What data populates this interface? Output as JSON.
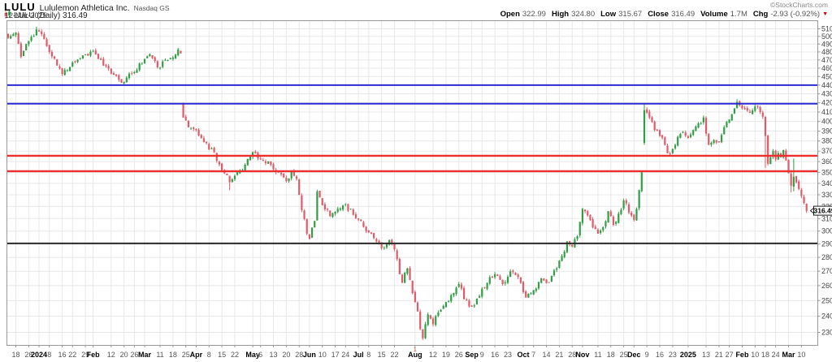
{
  "header": {
    "symbol": "LULU",
    "company": "Lululemon Athletica Inc.",
    "exchange": "Nasdaq GS",
    "date": "12-Mar-2025",
    "credit": "©StockCharts.com",
    "quote": {
      "items": [
        {
          "label": "Open",
          "value": "322.99"
        },
        {
          "label": "High",
          "value": "324.80"
        },
        {
          "label": "Low",
          "value": "315.67"
        },
        {
          "label": "Close",
          "value": "316.49"
        },
        {
          "label": "Volume",
          "value": "1.7M"
        },
        {
          "label": "Chg",
          "value": "-2.93 (-0.92%)"
        }
      ],
      "arrow": "▼",
      "direction": "down"
    }
  },
  "legend": {
    "label": "LULU (Daily) 316.49"
  },
  "chart_data": {
    "type": "candlestick",
    "symbol": "LULU",
    "period": "Daily",
    "scale": "log",
    "grid": true,
    "last_price": 316.49,
    "price_marker": {
      "value": "316.49"
    },
    "y_axis": {
      "side": "right",
      "min": 222,
      "max": 518,
      "ticks": [
        230,
        240,
        250,
        260,
        270,
        280,
        290,
        300,
        310,
        320,
        330,
        340,
        350,
        360,
        370,
        380,
        390,
        400,
        410,
        420,
        430,
        440,
        450,
        460,
        470,
        480,
        490,
        500,
        510
      ]
    },
    "x_axis": {
      "labels": [
        {
          "text": "18",
          "i": 3
        },
        {
          "text": "26",
          "i": 8
        },
        {
          "text": "2024",
          "i": 12,
          "bold": true
        },
        {
          "text": "8",
          "i": 16
        },
        {
          "text": "16",
          "i": 21
        },
        {
          "text": "22",
          "i": 25
        },
        {
          "text": "29",
          "i": 30
        },
        {
          "text": "Feb",
          "i": 33,
          "bold": true
        },
        {
          "text": "12",
          "i": 40
        },
        {
          "text": "20",
          "i": 45
        },
        {
          "text": "26",
          "i": 49
        },
        {
          "text": "Mar",
          "i": 53,
          "bold": true
        },
        {
          "text": "11",
          "i": 59
        },
        {
          "text": "18",
          "i": 64
        },
        {
          "text": "25",
          "i": 69
        },
        {
          "text": "Apr",
          "i": 73,
          "bold": true
        },
        {
          "text": "8",
          "i": 78
        },
        {
          "text": "15",
          "i": 83
        },
        {
          "text": "22",
          "i": 88
        },
        {
          "text": "May",
          "i": 95,
          "bold": true
        },
        {
          "text": "6",
          "i": 98
        },
        {
          "text": "13",
          "i": 103
        },
        {
          "text": "20",
          "i": 108
        },
        {
          "text": "28",
          "i": 113
        },
        {
          "text": "Jun",
          "i": 117,
          "bold": true
        },
        {
          "text": "10",
          "i": 122
        },
        {
          "text": "17",
          "i": 127
        },
        {
          "text": "24",
          "i": 131
        },
        {
          "text": "Jul",
          "i": 136,
          "bold": true
        },
        {
          "text": "8",
          "i": 140
        },
        {
          "text": "15",
          "i": 145
        },
        {
          "text": "22",
          "i": 150
        },
        {
          "text": "Aug",
          "i": 158,
          "bold": true
        },
        {
          "text": "12",
          "i": 165
        },
        {
          "text": "19",
          "i": 170
        },
        {
          "text": "26",
          "i": 175
        },
        {
          "text": "Sep",
          "i": 180,
          "bold": true
        },
        {
          "text": "9",
          "i": 184
        },
        {
          "text": "16",
          "i": 189
        },
        {
          "text": "23",
          "i": 194
        },
        {
          "text": "Oct",
          "i": 200,
          "bold": true
        },
        {
          "text": "7",
          "i": 204
        },
        {
          "text": "14",
          "i": 209
        },
        {
          "text": "21",
          "i": 214
        },
        {
          "text": "28",
          "i": 219
        },
        {
          "text": "Nov",
          "i": 223,
          "bold": true
        },
        {
          "text": "11",
          "i": 229
        },
        {
          "text": "18",
          "i": 234
        },
        {
          "text": "25",
          "i": 239
        },
        {
          "text": "Dec",
          "i": 243,
          "bold": true
        },
        {
          "text": "9",
          "i": 248
        },
        {
          "text": "16",
          "i": 253
        },
        {
          "text": "23",
          "i": 258
        },
        {
          "text": "2025",
          "i": 264,
          "bold": true
        },
        {
          "text": "13",
          "i": 271
        },
        {
          "text": "21",
          "i": 276
        },
        {
          "text": "27",
          "i": 280
        },
        {
          "text": "Feb",
          "i": 285,
          "bold": true
        },
        {
          "text": "10",
          "i": 290
        },
        {
          "text": "18",
          "i": 294
        },
        {
          "text": "24",
          "i": 298
        },
        {
          "text": "Mar",
          "i": 303,
          "bold": true
        },
        {
          "text": "10",
          "i": 308
        }
      ],
      "month_start_marks": [
        {
          "text": "1",
          "i": 158
        }
      ]
    },
    "overlay_lines": [
      {
        "price": 440,
        "color": "#2b2bd4",
        "width": 2,
        "name": "resistance-blue-upper"
      },
      {
        "price": 419,
        "color": "#2b2bd4",
        "width": 2,
        "name": "resistance-blue-lower"
      },
      {
        "price": 365.5,
        "color": "#ee2e2e",
        "width": 2.4,
        "name": "support-red-upper"
      },
      {
        "price": 351,
        "color": "#ee2e2e",
        "width": 2.4,
        "name": "support-red-lower"
      },
      {
        "price": 290.5,
        "color": "#2b2b2b",
        "width": 2,
        "name": "support-black"
      }
    ],
    "colors": {
      "up": "#2f9e44",
      "down": "#e05a68",
      "grid": "#e8e8e8",
      "frame": "#999999",
      "axis_text": "#444444",
      "marker_text": "#000000"
    },
    "candles": {
      "count": 311,
      "first_open": 503,
      "noise_seed": 11,
      "gap_opens": {
        "68": 419,
        "247": 378
      },
      "wick_high_overrides": {
        "11": 513,
        "247": 419.5,
        "283": 424,
        "305": 363
      },
      "wick_low_overrides": {
        "86": 334,
        "161": 225.5,
        "294": 354,
        "304": 332,
        "305": 333
      },
      "close_anchors": [
        [
          0,
          498
        ],
        [
          3,
          505
        ],
        [
          5,
          474
        ],
        [
          8,
          494
        ],
        [
          11,
          509
        ],
        [
          13,
          503
        ],
        [
          16,
          480
        ],
        [
          21,
          453
        ],
        [
          25,
          467
        ],
        [
          30,
          477
        ],
        [
          33,
          481
        ],
        [
          37,
          463
        ],
        [
          41,
          452
        ],
        [
          45,
          444
        ],
        [
          48,
          453
        ],
        [
          53,
          471
        ],
        [
          55,
          477
        ],
        [
          58,
          461
        ],
        [
          62,
          470
        ],
        [
          66,
          483
        ],
        [
          67,
          478
        ],
        [
          68,
          404
        ],
        [
          70,
          394
        ],
        [
          73,
          391
        ],
        [
          76,
          379
        ],
        [
          80,
          369
        ],
        [
          83,
          352
        ],
        [
          86,
          341
        ],
        [
          89,
          350
        ],
        [
          92,
          357
        ],
        [
          95,
          369
        ],
        [
          98,
          362
        ],
        [
          102,
          357
        ],
        [
          105,
          350
        ],
        [
          108,
          342
        ],
        [
          110,
          351
        ],
        [
          112,
          344
        ],
        [
          114,
          317
        ],
        [
          116,
          298
        ],
        [
          117,
          294
        ],
        [
          119,
          308
        ],
        [
          120,
          333
        ],
        [
          122,
          321
        ],
        [
          125,
          312
        ],
        [
          128,
          318
        ],
        [
          131,
          322
        ],
        [
          134,
          313
        ],
        [
          137,
          308
        ],
        [
          140,
          299
        ],
        [
          143,
          292
        ],
        [
          146,
          287
        ],
        [
          148,
          293
        ],
        [
          150,
          286
        ],
        [
          152,
          268
        ],
        [
          153,
          262
        ],
        [
          155,
          272
        ],
        [
          157,
          255
        ],
        [
          158,
          249
        ],
        [
          159,
          243
        ],
        [
          160,
          232
        ],
        [
          161,
          226.5
        ],
        [
          162,
          235
        ],
        [
          163,
          241
        ],
        [
          165,
          235
        ],
        [
          166,
          240
        ],
        [
          168,
          244
        ],
        [
          170,
          249
        ],
        [
          173,
          255
        ],
        [
          175,
          261
        ],
        [
          177,
          251
        ],
        [
          180,
          246
        ],
        [
          183,
          253
        ],
        [
          186,
          262
        ],
        [
          189,
          268
        ],
        [
          192,
          261
        ],
        [
          195,
          270
        ],
        [
          198,
          266
        ],
        [
          201,
          252
        ],
        [
          204,
          257
        ],
        [
          207,
          265
        ],
        [
          210,
          262
        ],
        [
          213,
          272
        ],
        [
          215,
          281
        ],
        [
          217,
          292
        ],
        [
          219,
          288
        ],
        [
          221,
          296
        ],
        [
          223,
          318
        ],
        [
          226,
          309
        ],
        [
          229,
          298
        ],
        [
          231,
          303
        ],
        [
          233,
          316
        ],
        [
          235,
          305
        ],
        [
          237,
          314
        ],
        [
          239,
          325
        ],
        [
          241,
          315
        ],
        [
          243,
          309
        ],
        [
          244,
          318
        ],
        [
          245,
          334
        ],
        [
          246,
          350
        ],
        [
          247,
          412
        ],
        [
          249,
          404
        ],
        [
          251,
          391
        ],
        [
          253,
          385
        ],
        [
          255,
          376
        ],
        [
          256,
          368
        ],
        [
          258,
          372
        ],
        [
          260,
          384
        ],
        [
          262,
          389
        ],
        [
          264,
          383
        ],
        [
          266,
          391
        ],
        [
          268,
          398
        ],
        [
          270,
          404
        ],
        [
          272,
          376
        ],
        [
          274,
          381
        ],
        [
          276,
          379
        ],
        [
          278,
          394
        ],
        [
          280,
          402
        ],
        [
          282,
          414
        ],
        [
          283,
          421
        ],
        [
          284,
          417
        ],
        [
          286,
          413
        ],
        [
          288,
          409
        ],
        [
          290,
          416
        ],
        [
          292,
          410
        ],
        [
          293,
          405
        ],
        [
          294,
          385
        ],
        [
          295,
          358
        ],
        [
          296,
          364
        ],
        [
          297,
          370
        ],
        [
          298,
          362
        ],
        [
          299,
          368
        ],
        [
          300,
          364
        ],
        [
          301,
          371
        ],
        [
          302,
          361
        ],
        [
          303,
          349
        ],
        [
          304,
          338
        ],
        [
          305,
          346
        ],
        [
          306,
          341
        ],
        [
          307,
          335
        ],
        [
          308,
          329
        ],
        [
          309,
          323
        ],
        [
          310,
          316.49
        ]
      ]
    }
  }
}
